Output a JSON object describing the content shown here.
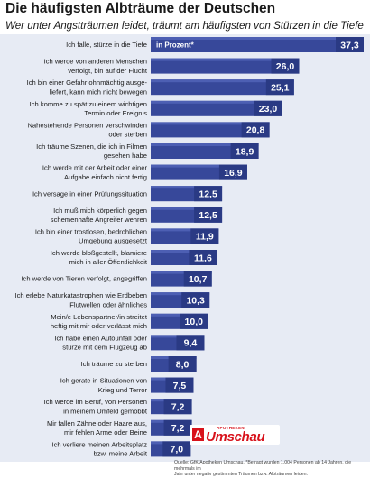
{
  "title": "Die häufigsten Albträume der Deutschen",
  "subtitle": "Wer unter Angstträumen leidet, träumt am häufigsten von Stürzen in die Tiefe",
  "unit_label": "in Prozent*",
  "source_lines": [
    "Quelle: GfK/Apotheken Umschau. *Befragt wurden 1.004 Personen ab 14 Jahren, die mehrmals im",
    "Jahr unter negativ gestimmten Träumen bzw. Albträumen leiden."
  ],
  "logo": {
    "mark": "A",
    "small": "APOTHEKEN",
    "main": "Umschau"
  },
  "colors": {
    "bar": "#37489a",
    "bar_light": "#4d5fb3",
    "value_box": "#2a3a84",
    "panel": "#e7ebf4",
    "text": "#1a1a1a",
    "value_text": "#ffffff",
    "logo_red": "#d8121b"
  },
  "chart_data": {
    "type": "bar",
    "orientation": "horizontal",
    "title": "Die häufigsten Albträume der Deutschen",
    "subtitle": "Wer unter Angstträumen leidet, träumt am häufigsten von Stürzen in die Tiefe",
    "unit": "in Prozent*",
    "categories": [
      [
        "Ich falle, stürze in die Tiefe"
      ],
      [
        "Ich werde von anderen Menschen",
        "verfolgt, bin auf der Flucht"
      ],
      [
        "Ich bin einer Gefahr ohnmächtig ausge-",
        "liefert, kann mich nicht bewegen"
      ],
      [
        "Ich komme zu spät zu einem wichtigen",
        "Termin oder Ereignis"
      ],
      [
        "Nahestehende Personen verschwinden",
        "oder sterben"
      ],
      [
        "Ich träume Szenen, die ich in Filmen",
        "gesehen habe"
      ],
      [
        "Ich werde mit der Arbeit oder einer",
        "Aufgabe einfach nicht fertig"
      ],
      [
        "Ich versage in einer Prüfungssituation"
      ],
      [
        "Ich muß mich körperlich gegen",
        "schemenhafte Angreifer wehren"
      ],
      [
        "Ich bin einer trostlosen, bedrohlichen",
        "Umgebung ausgesetzt"
      ],
      [
        "Ich werde bloßgestellt, blamiere",
        "mich in aller Öffentlichkeit"
      ],
      [
        "Ich werde von Tieren verfolgt, angegriffen"
      ],
      [
        "Ich erlebe Naturkatastrophen wie Erdbeben",
        "Flutwellen oder ähnliches"
      ],
      [
        "Mein/e Lebenspartner/in streitet",
        "heftig mit mir oder verlässt mich"
      ],
      [
        "Ich habe einen Autounfall oder",
        "stürze mit dem Flugzeug ab"
      ],
      [
        "Ich träume zu sterben"
      ],
      [
        "Ich gerate in Situationen von",
        "Krieg und Terror"
      ],
      [
        "Ich werde im Beruf, von Personen",
        "in meinem Umfeld gemobbt"
      ],
      [
        "Mir fallen Zähne oder Haare aus,",
        "mir fehlen Arme oder Beine"
      ],
      [
        "Ich verliere meinen Arbeitsplatz",
        "bzw. meine Arbeit"
      ]
    ],
    "values": [
      37.3,
      26.0,
      25.1,
      23.0,
      20.8,
      18.9,
      16.9,
      12.5,
      12.5,
      11.9,
      11.6,
      10.7,
      10.3,
      10.0,
      9.4,
      8.0,
      7.5,
      7.2,
      7.2,
      7.0
    ],
    "value_labels": [
      "37,3",
      "26,0",
      "25,1",
      "23,0",
      "20,8",
      "18,9",
      "16,9",
      "12,5",
      "12,5",
      "11,9",
      "11,6",
      "10,7",
      "10,3",
      "10,0",
      "9,4",
      "8,0",
      "7,5",
      "7,2",
      "7,2",
      "7,0"
    ],
    "xlim": [
      0,
      37.3
    ],
    "grid": false,
    "legend": "none"
  }
}
